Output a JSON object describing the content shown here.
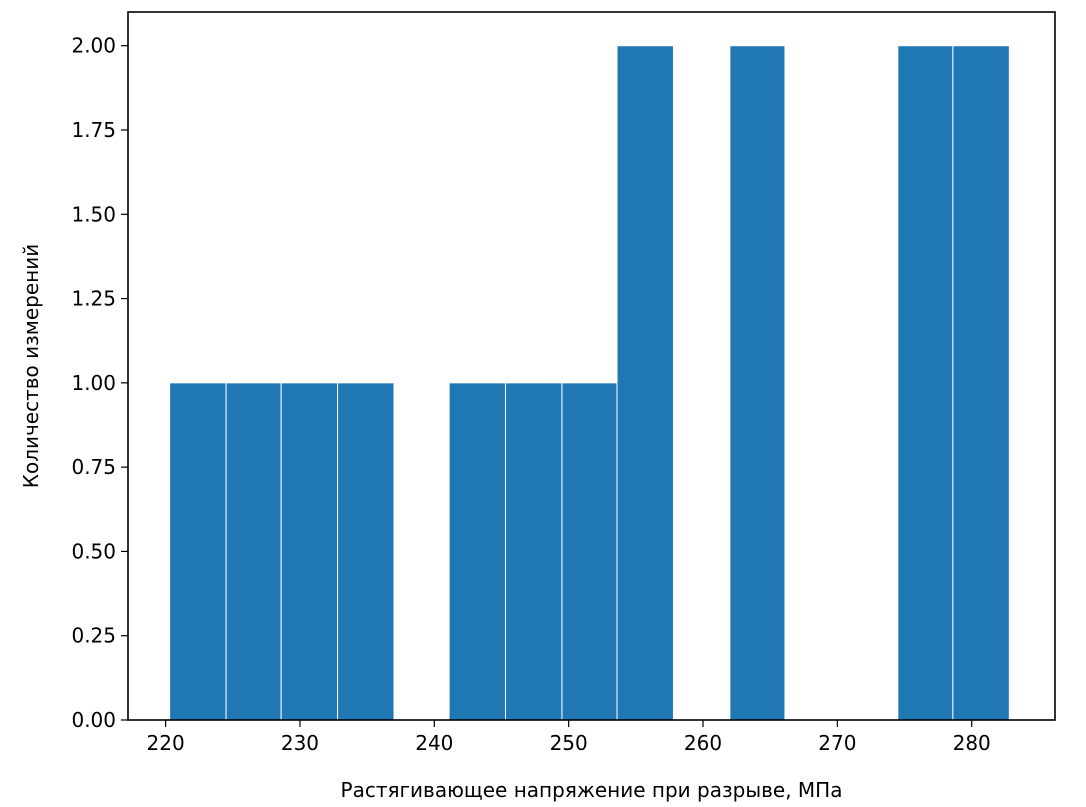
{
  "chart_data": {
    "type": "bar",
    "title": "",
    "xlabel": "Растягивающее напряжение при разрыве, МПа",
    "ylabel": "Количество измерений",
    "xlim": [
      217.2,
      286.2
    ],
    "ylim": [
      0,
      2.1
    ],
    "xticks": [
      220,
      230,
      240,
      250,
      260,
      270,
      280
    ],
    "xtick_labels": [
      "220",
      "230",
      "240",
      "250",
      "260",
      "270",
      "280"
    ],
    "yticks": [
      0,
      0.25,
      0.5,
      0.75,
      1.0,
      1.25,
      1.5,
      1.75,
      2.0
    ],
    "ytick_labels": [
      "0.00",
      "0.25",
      "0.50",
      "0.75",
      "1.00",
      "1.25",
      "1.50",
      "1.75",
      "2.00"
    ],
    "bin_edges": [
      220.3,
      224.5,
      228.6,
      232.8,
      237.0,
      241.1,
      245.3,
      249.5,
      253.6,
      257.8,
      262.0,
      266.1,
      270.3,
      274.5,
      278.6,
      282.8
    ],
    "counts": [
      1,
      1,
      1,
      1,
      0,
      1,
      1,
      1,
      2,
      0,
      2,
      0,
      0,
      2,
      2
    ],
    "bar_color": "#1f77b4",
    "edge_color": "#ffffff",
    "grid": false,
    "legend": "none"
  }
}
